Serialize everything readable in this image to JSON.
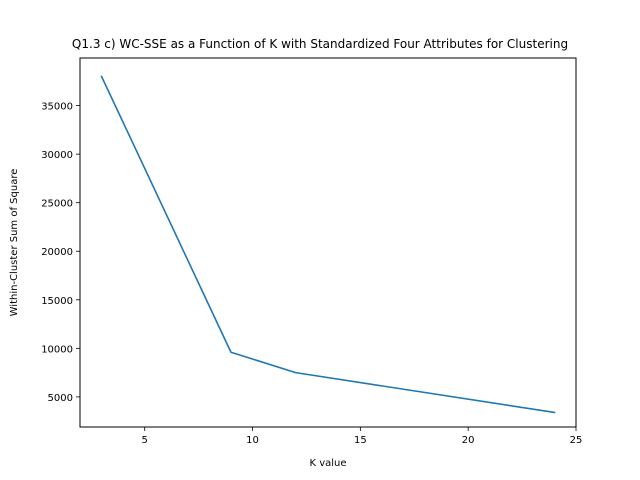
{
  "chart_data": {
    "type": "line",
    "title": "Q1.3 c) WC-SSE as a Function of K with Standardized Four Attributes for Clustering",
    "xlabel": "K value",
    "ylabel": "Within-Cluster Sum of Square",
    "xlim": [
      2,
      25
    ],
    "ylim": [
      1900,
      39900
    ],
    "xticks": [
      5,
      10,
      15,
      20,
      25
    ],
    "yticks": [
      5000,
      10000,
      15000,
      20000,
      25000,
      30000,
      35000
    ],
    "grid": false,
    "series": [
      {
        "color": "#1f77b4",
        "x": [
          3,
          9,
          12,
          24
        ],
        "y": [
          38000,
          9600,
          7500,
          3400
        ]
      }
    ]
  }
}
